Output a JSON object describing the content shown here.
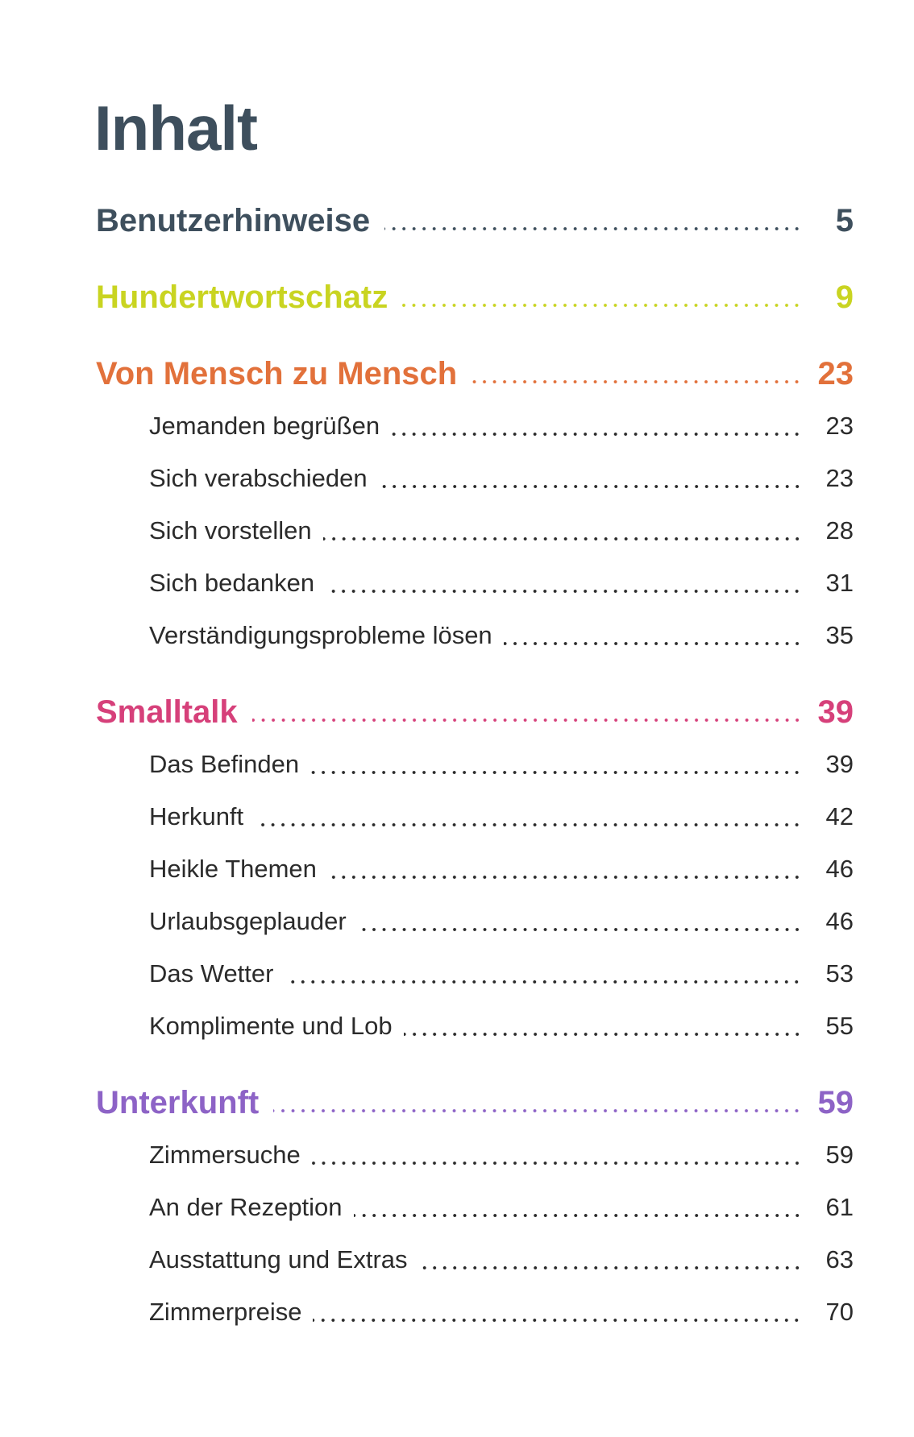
{
  "title": "Inhalt",
  "sections": [
    {
      "title": "Benutzerhinweise",
      "page": 5,
      "color": "#3e4f5d",
      "items": []
    },
    {
      "title": "Hundertwortschatz",
      "page": 9,
      "color": "#c9d421",
      "items": []
    },
    {
      "title": "Von Mensch zu Mensch",
      "page": 23,
      "color": "#e2713b",
      "items": [
        {
          "title": "Jemanden begrüßen",
          "page": 23
        },
        {
          "title": "Sich verabschieden",
          "page": 23
        },
        {
          "title": "Sich vorstellen",
          "page": 28
        },
        {
          "title": "Sich bedanken",
          "page": 31
        },
        {
          "title": "Verständigungsprobleme lösen",
          "page": 35
        }
      ]
    },
    {
      "title": "Smalltalk",
      "page": 39,
      "color": "#d6407a",
      "items": [
        {
          "title": "Das Befinden",
          "page": 39
        },
        {
          "title": "Herkunft",
          "page": 42
        },
        {
          "title": "Heikle Themen",
          "page": 46
        },
        {
          "title": "Urlaubsgeplauder",
          "page": 46
        },
        {
          "title": "Das Wetter",
          "page": 53
        },
        {
          "title": "Komplimente und Lob",
          "page": 55
        }
      ]
    },
    {
      "title": "Unterkunft",
      "page": 59,
      "color": "#8d63c6",
      "items": [
        {
          "title": "Zimmersuche",
          "page": 59
        },
        {
          "title": "An der Rezeption",
          "page": 61
        },
        {
          "title": "Ausstattung und Extras",
          "page": 63
        },
        {
          "title": "Zimmerpreise",
          "page": 70
        }
      ]
    }
  ]
}
